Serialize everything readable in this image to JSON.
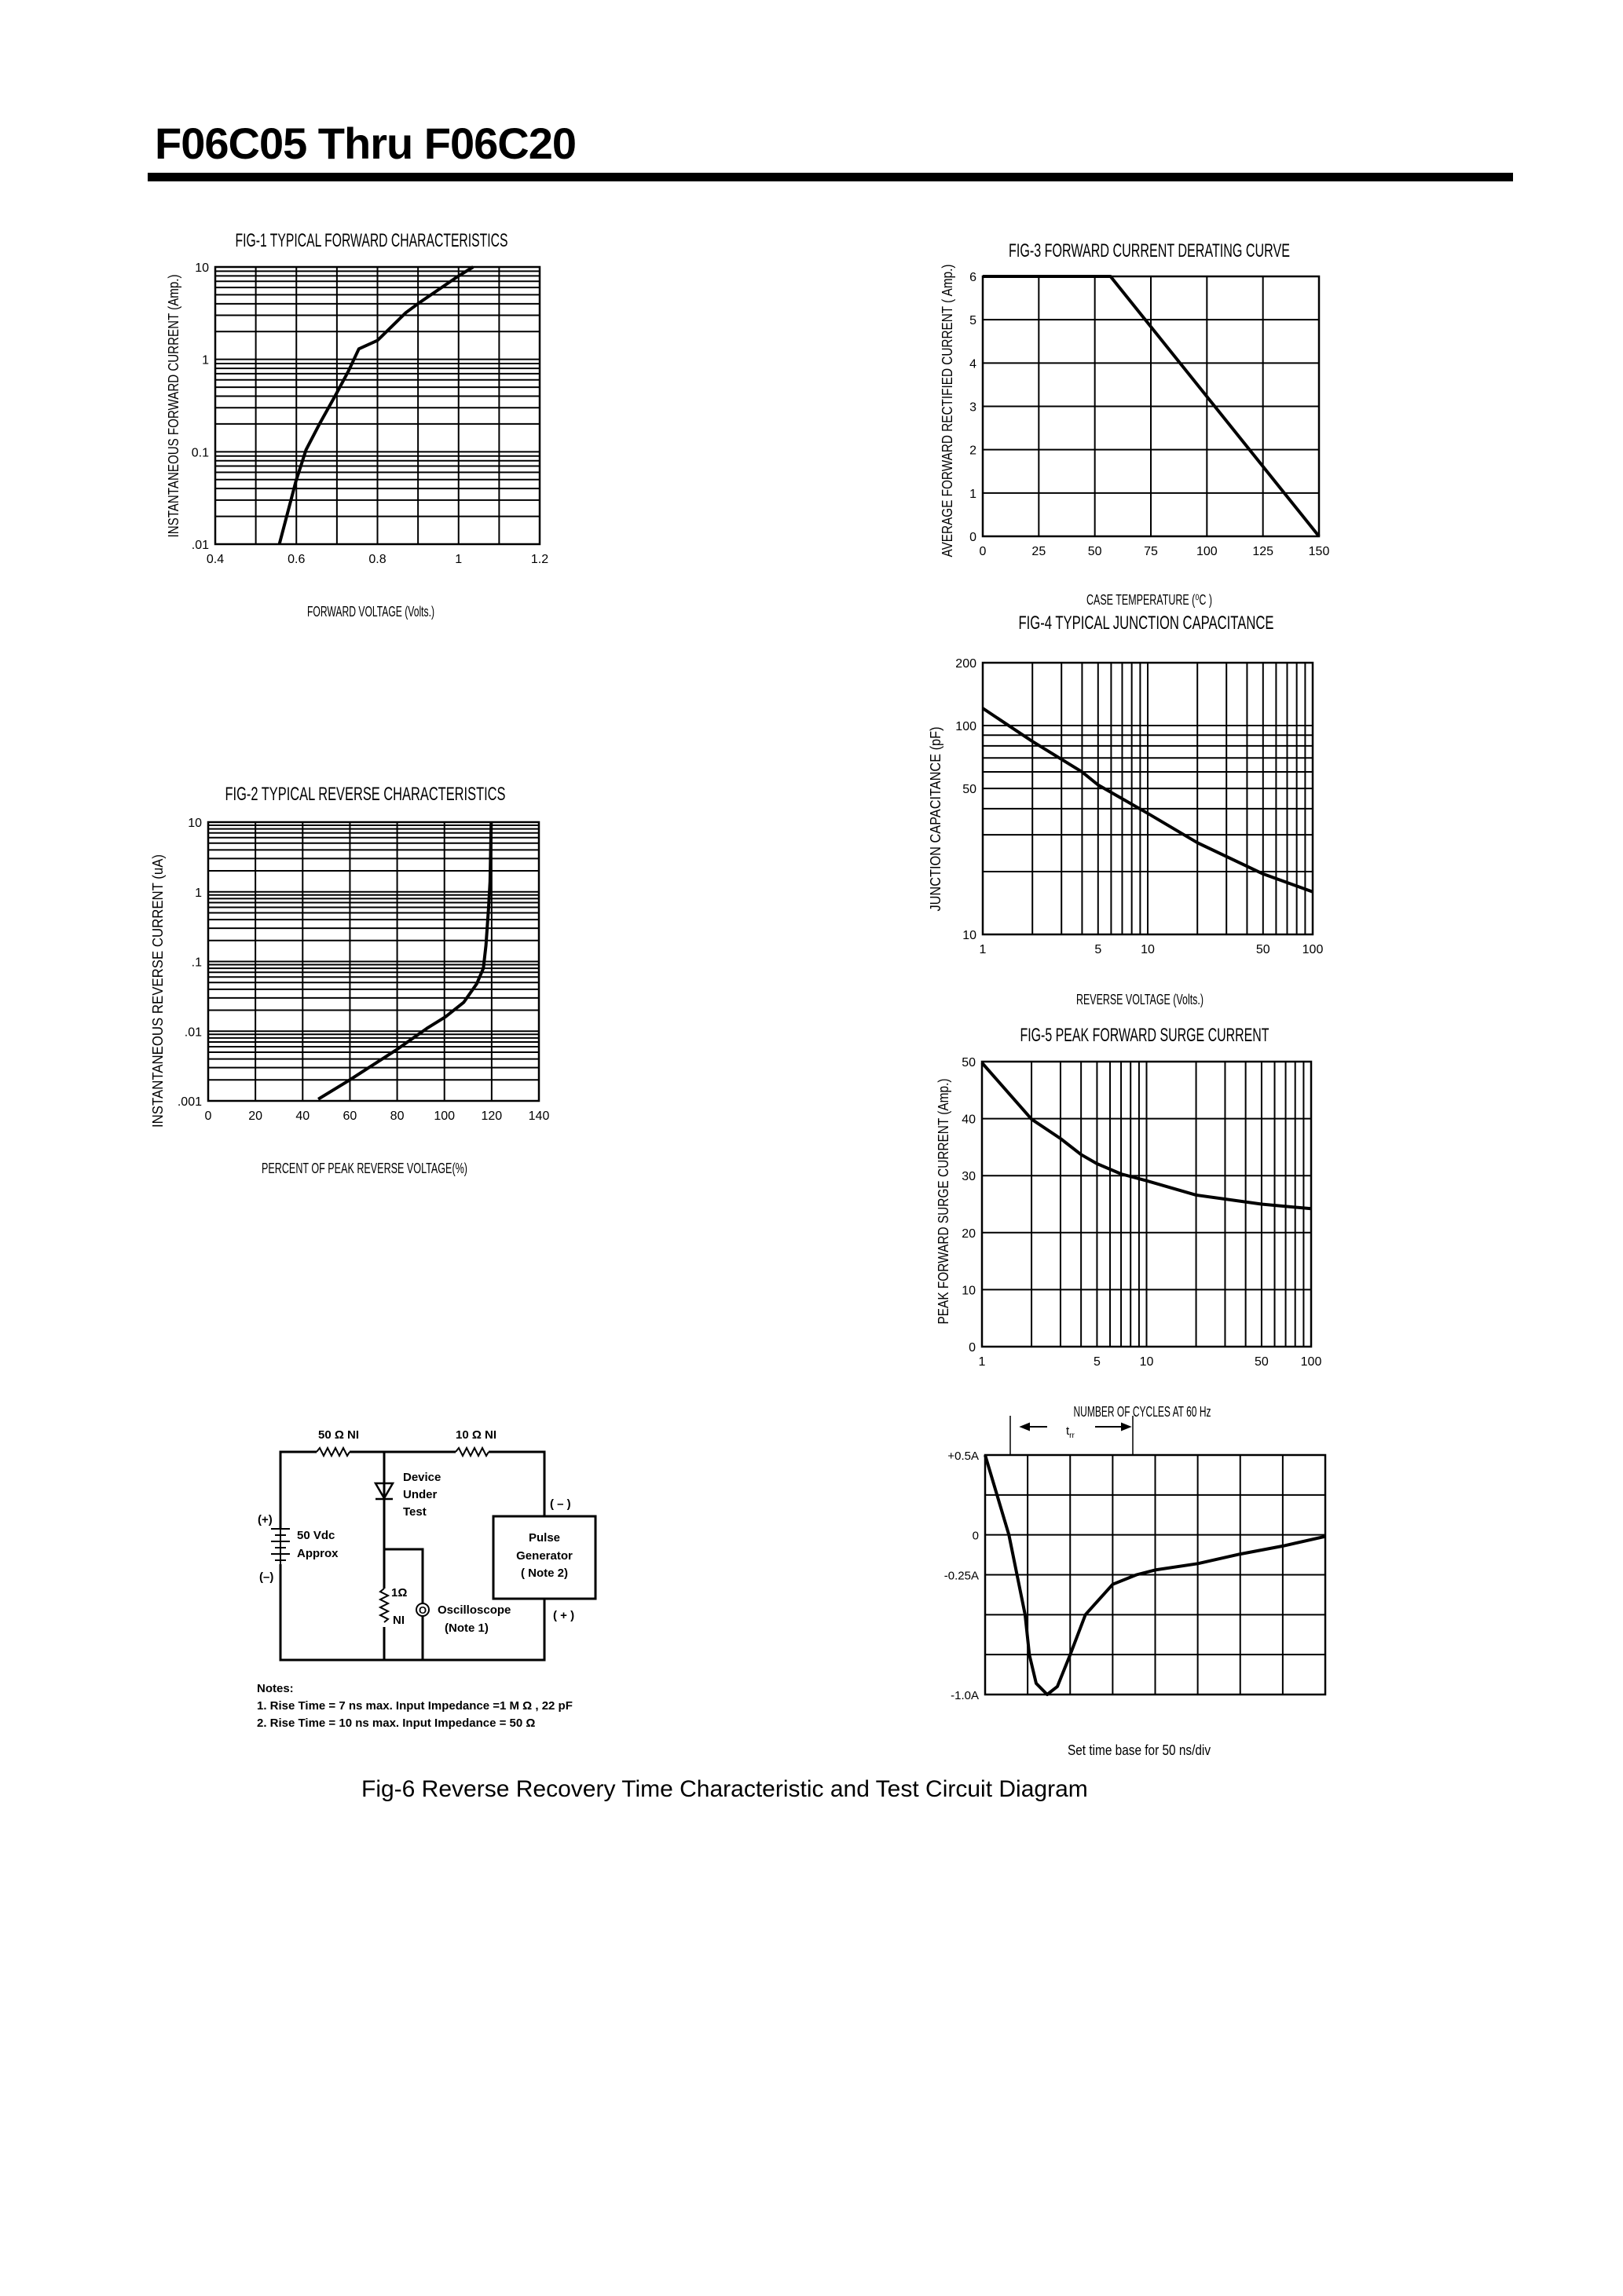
{
  "header": {
    "title": "F06C05 Thru F06C20"
  },
  "chart_data": [
    {
      "type": "line",
      "title": "FIG-1 TYPICAL FORWARD CHARACTERISTICS",
      "xlabel": "FORWARD VOLTAGE (Volts.)",
      "ylabel": "INSTANTANEOUS FORWARD CURRENT (Amp.)",
      "xscale": "linear",
      "yscale": "log",
      "xlim": [
        0.4,
        1.2
      ],
      "ylim": [
        0.01,
        10
      ],
      "x_grid_step": 0.1,
      "xticks": [
        0.4,
        0.6,
        0.8,
        1,
        1.2
      ],
      "xtick_labels": [
        "0.4",
        "0.6",
        "0.8",
        "1",
        "1.2"
      ],
      "yticks": [
        0.01,
        0.1,
        1,
        10
      ],
      "ytick_labels": [
        ".01",
        "0.1",
        "1",
        "10"
      ],
      "grid": true,
      "x": [
        0.558,
        0.599,
        0.624,
        0.657,
        0.698,
        0.728,
        0.754,
        0.8,
        0.87,
        0.903,
        1.0,
        1.036
      ],
      "y": [
        0.01,
        0.048,
        0.105,
        0.2,
        0.42,
        0.74,
        1.3,
        1.6,
        3.2,
        4.1,
        8,
        10
      ]
    },
    {
      "type": "line",
      "title": "FIG-2 TYPICAL REVERSE CHARACTERISTICS",
      "xlabel": "PERCENT OF PEAK REVERSE VOLTAGE(%)",
      "ylabel": "INSTANTANEOUS REVERSE CURRENT (uA)",
      "xscale": "linear",
      "yscale": "log",
      "xlim": [
        0,
        140
      ],
      "ylim": [
        0.001,
        10
      ],
      "x_grid_step": 20,
      "xticks": [
        0,
        20,
        40,
        60,
        80,
        100,
        120,
        140
      ],
      "xtick_labels": [
        "0",
        "20",
        "40",
        "60",
        "80",
        "100",
        "120",
        "140"
      ],
      "yticks": [
        0.001,
        0.01,
        0.1,
        1,
        10
      ],
      "ytick_labels": [
        ".001",
        ".01",
        ".1",
        "1",
        "10"
      ],
      "grid": true,
      "x": [
        46.6,
        59.4,
        79.3,
        92.6,
        100.4,
        108.2,
        113.7,
        116.5,
        117.6,
        118.7,
        119.3,
        119.8
      ],
      "y": [
        0.00106,
        0.00195,
        0.0053,
        0.011,
        0.016,
        0.026,
        0.048,
        0.08,
        0.17,
        0.58,
        1.4,
        10
      ]
    },
    {
      "type": "line",
      "title": "FIG-3 FORWARD CURRENT DERATING CURVE",
      "xlabel": "CASE TEMPERATURE (⁰C )",
      "ylabel": "AVERAGE FORWARD RECTIFIED CURRENT ( Amp.)",
      "xscale": "linear",
      "yscale": "linear",
      "xlim": [
        0,
        150
      ],
      "ylim": [
        0,
        6
      ],
      "x_grid_step": 25,
      "y_grid_step": 1,
      "xticks": [
        0,
        25,
        50,
        75,
        100,
        125,
        150
      ],
      "xtick_labels": [
        "0",
        "25",
        "50",
        "75",
        "100",
        "125",
        "150"
      ],
      "yticks": [
        0,
        1,
        2,
        3,
        4,
        5,
        6
      ],
      "ytick_labels": [
        "0",
        "1",
        "2",
        "3",
        "4",
        "5",
        "6"
      ],
      "grid": true,
      "x": [
        0,
        57,
        150
      ],
      "y": [
        6,
        6,
        0
      ]
    },
    {
      "type": "line",
      "title": "FIG-4 TYPICAL JUNCTION CAPACITANCE",
      "xlabel": "REVERSE VOLTAGE (Volts.)",
      "ylabel": "JUNCTION CAPACITANCE (pF)",
      "xscale": "log",
      "yscale": "log",
      "xlim": [
        1,
        100
      ],
      "ylim": [
        10,
        200
      ],
      "xticks": [
        1,
        5,
        10,
        50,
        100
      ],
      "xtick_labels": [
        "1",
        "5",
        "10",
        "50",
        "100"
      ],
      "yticks": [
        10,
        50,
        100,
        200
      ],
      "ytick_labels": [
        "10",
        "50",
        "100",
        "200"
      ],
      "grid": true,
      "x": [
        1,
        2,
        4,
        5,
        10,
        20,
        50,
        100
      ],
      "y": [
        121,
        84,
        60,
        52,
        38,
        27.5,
        19.5,
        16
      ]
    },
    {
      "type": "line",
      "title": "FIG-5 PEAK FORWARD SURGE CURRENT",
      "xlabel": "NUMBER OF CYCLES AT 60 Hz",
      "ylabel": "PEAK FORWARD SURGE CURRENT (Amp.)",
      "xscale": "log",
      "yscale": "linear",
      "xlim": [
        1,
        100
      ],
      "ylim": [
        0,
        50
      ],
      "y_grid_step": 10,
      "xticks": [
        1,
        5,
        10,
        50,
        100
      ],
      "xtick_labels": [
        "1",
        "5",
        "10",
        "50",
        "100"
      ],
      "yticks": [
        0,
        10,
        20,
        30,
        40,
        50
      ],
      "ytick_labels": [
        "0",
        "10",
        "20",
        "30",
        "40",
        "50"
      ],
      "grid": true,
      "x": [
        1,
        2,
        3,
        4,
        5,
        7,
        10,
        20,
        50,
        100
      ],
      "y": [
        49.8,
        39.9,
        36.5,
        33.7,
        32.1,
        30.3,
        29.1,
        26.6,
        25,
        24.2
      ]
    },
    {
      "type": "line",
      "title": "",
      "note": "Set time base for 50  ns/div",
      "annotation": {
        "t": "t",
        "sub": "rr"
      },
      "xscale": "linear",
      "yscale": "linear",
      "x_unit": "ns",
      "xlim": [
        0,
        400
      ],
      "ylim": [
        -1.0,
        0.5
      ],
      "x_grid_step": 50,
      "y_grid_step": 0.25,
      "yticks": [
        0.5,
        0,
        -0.25,
        -1.0
      ],
      "ytick_labels": [
        "+0.5A",
        "0",
        "-0.25A",
        "-1.0A"
      ],
      "grid": true,
      "x": [
        0,
        28,
        47,
        52,
        60,
        73,
        85,
        100,
        118,
        150,
        178,
        200,
        250,
        300,
        350,
        400
      ],
      "y": [
        0.5,
        0,
        -0.5,
        -0.75,
        -0.93,
        -1.0,
        -0.95,
        -0.75,
        -0.5,
        -0.31,
        -0.25,
        -0.22,
        -0.18,
        -0.12,
        -0.07,
        -0.01
      ]
    }
  ],
  "circuit": {
    "r1_label": "50 Ω  NI",
    "r2_label": "10 Ω  NI",
    "dut_lines": [
      "Device",
      "Under",
      "Test"
    ],
    "battery_plus": "(+)",
    "battery_minus": "(–)",
    "battery_lines": [
      "50 Vdc",
      "Approx"
    ],
    "r3_value": "1Ω",
    "r3_type": "NI",
    "scope_symbol": "O",
    "scope_lines": [
      "Oscilloscope",
      "(Note 1)"
    ],
    "pulse_lines": [
      "Pulse",
      "Generator",
      "( Note 2)"
    ],
    "pulse_minus": "( – )",
    "pulse_plus": "( + )",
    "notes_title": "Notes:",
    "notes": [
      "1. Rise Time = 7 ns max. Input Impedance =1 M Ω , 22 pF",
      "2. Rise Time = 10 ns max. Input Impedance = 50 Ω"
    ]
  },
  "figure6": {
    "caption": "Fig-6 Reverse Recovery Time Characteristic and Test Circuit Diagram"
  }
}
